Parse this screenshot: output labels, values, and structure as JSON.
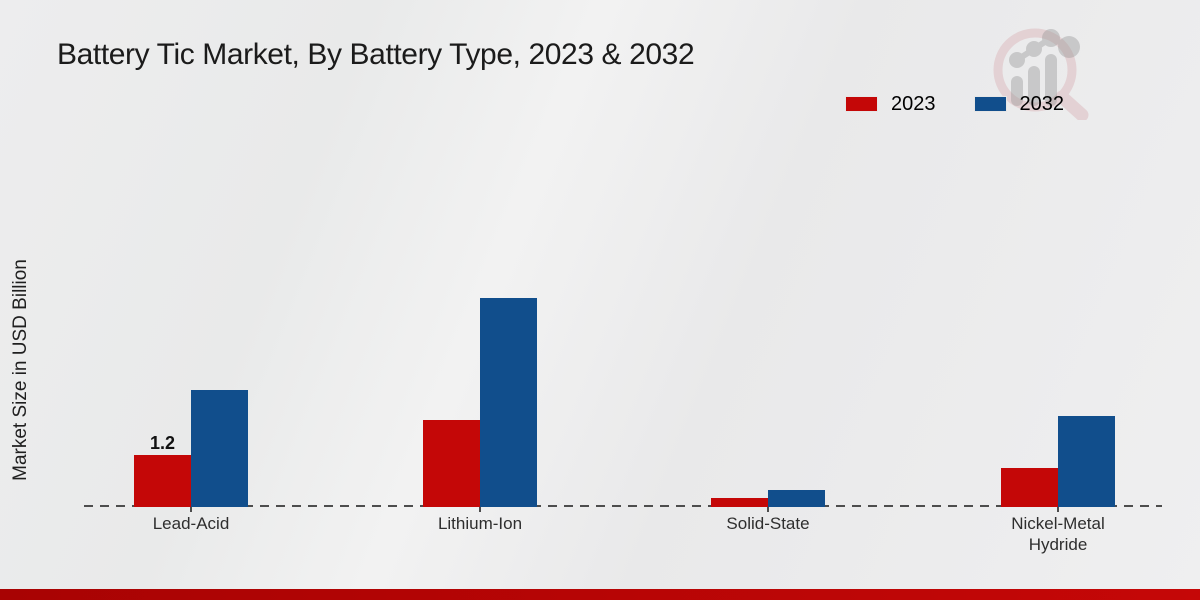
{
  "title": "Battery Tic Market, By Battery Type, 2023 & 2032",
  "y_axis_label": "Market Size in USD Billion",
  "legend": {
    "position": "top-right",
    "items": [
      {
        "label": "2023",
        "color": "#c40707"
      },
      {
        "label": "2032",
        "color": "#114e8c"
      }
    ]
  },
  "footer": {
    "accent_bar_color_left": "#a80303",
    "accent_bar_color_right": "#c50707"
  },
  "watermark": {
    "name": "market-research-magnifier-logo",
    "ring_color": "#cf8f96",
    "bars_color": "#9a9a9a"
  },
  "axis": {
    "baseline_color": "#4d4d4d",
    "baseline_style": "dashed"
  },
  "chart_data": {
    "type": "bar",
    "title": "Battery Tic Market, By Battery Type, 2023 & 2032",
    "xlabel": "",
    "ylabel": "Market Size in USD Billion",
    "categories": [
      "Lead-Acid",
      "Lithium-Ion",
      "Solid-State",
      "Nickel-Metal Hydride"
    ],
    "series": [
      {
        "name": "2023",
        "color": "#c40707",
        "values": [
          1.2,
          2.0,
          0.2,
          0.9
        ]
      },
      {
        "name": "2032",
        "color": "#114e8c",
        "values": [
          2.7,
          4.8,
          0.4,
          2.1
        ]
      }
    ],
    "data_labels": [
      {
        "category": "Lead-Acid",
        "series": "2023",
        "text": "1.2"
      }
    ],
    "ylim": [
      0,
      5.5
    ],
    "grid": false,
    "legend_position": "top-right"
  }
}
